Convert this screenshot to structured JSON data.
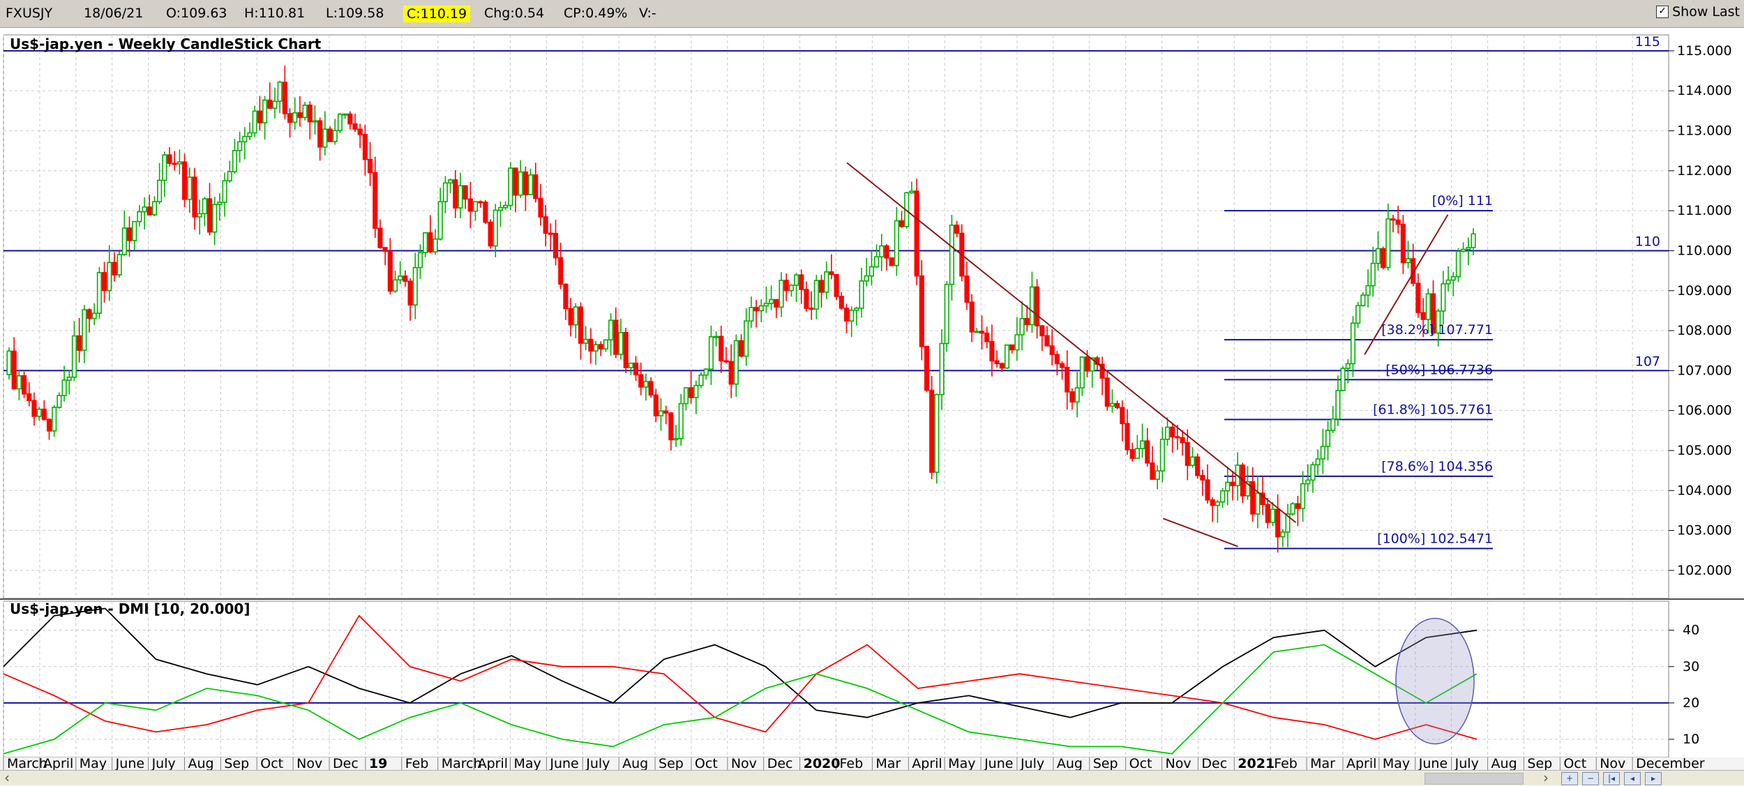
{
  "info_bar": {
    "symbol": "FXUSJY",
    "date": "18/06/21",
    "open": "O:109.63",
    "high": "H:110.81",
    "low": "L:109.58",
    "close": "C:110.19",
    "change": "Chg:0.54",
    "change_pct": "CP:0.49%",
    "volume": "V:-",
    "show_last_label": "Show Last",
    "show_last_checked": true
  },
  "chart_data": [
    {
      "type": "candlestick",
      "title": "Us$-jap.yen - Weekly CandleStick Chart",
      "y_range": [
        101.3,
        115.4
      ],
      "y_ticks": [
        "102.000",
        "103.000",
        "104.000",
        "105.000",
        "106.000",
        "107.000",
        "108.000",
        "109.000",
        "110.000",
        "111.000",
        "112.000",
        "113.000",
        "114.000",
        "115.000"
      ],
      "horizontal_lines": [
        {
          "value": 115,
          "label": "115"
        },
        {
          "value": 110,
          "label": "110"
        },
        {
          "value": 107,
          "label": "107"
        }
      ],
      "fibonacci_levels": [
        {
          "value": 111,
          "label": "[0%] 111"
        },
        {
          "value": 107.771,
          "label": "[38.2%] 107.771"
        },
        {
          "value": 106.7736,
          "label": "[50%] 106.7736"
        },
        {
          "value": 105.7761,
          "label": "[61.8%] 105.7761"
        },
        {
          "value": 104.356,
          "label": "[78.6%] 104.356"
        },
        {
          "value": 102.5471,
          "label": "[100%] 102.5471"
        }
      ],
      "trendlines": [
        {
          "from": [
            "2020-02-10",
            112.2
          ],
          "to": [
            "2021-02-22",
            103.2
          ]
        },
        {
          "from": [
            "2020-11-02",
            103.3
          ],
          "to": [
            "2021-01-04",
            102.6
          ]
        },
        {
          "from": [
            "2021-04-19",
            107.4
          ],
          "to": [
            "2021-06-28",
            110.9
          ]
        }
      ],
      "weekly_closes": [
        [
          0,
          107.2
        ],
        [
          4,
          106.0
        ],
        [
          8,
          105.2
        ],
        [
          12,
          107.1
        ],
        [
          16,
          108.6
        ],
        [
          20,
          109.5
        ],
        [
          24,
          110.5
        ],
        [
          28,
          111.3
        ],
        [
          32,
          112.6
        ],
        [
          36,
          111.4
        ],
        [
          40,
          110.8
        ],
        [
          44,
          112.0
        ],
        [
          48,
          113.2
        ],
        [
          52,
          114.0
        ],
        [
          56,
          113.6
        ],
        [
          60,
          113.2
        ],
        [
          64,
          112.6
        ],
        [
          68,
          113.5
        ],
        [
          72,
          111.6
        ],
        [
          76,
          109.2
        ],
        [
          80,
          108.8
        ],
        [
          84,
          110.4
        ],
        [
          88,
          111.6
        ],
        [
          92,
          111.2
        ],
        [
          96,
          110.4
        ],
        [
          100,
          111.7
        ],
        [
          104,
          111.8
        ],
        [
          108,
          110.2
        ],
        [
          112,
          108.5
        ],
        [
          116,
          107.5
        ],
        [
          120,
          108.0
        ],
        [
          124,
          107.3
        ],
        [
          128,
          106.1
        ],
        [
          132,
          105.3
        ],
        [
          136,
          106.5
        ],
        [
          140,
          107.8
        ],
        [
          144,
          107.0
        ],
        [
          148,
          108.6
        ],
        [
          152,
          108.9
        ],
        [
          156,
          109.3
        ],
        [
          160,
          108.9
        ],
        [
          164,
          109.5
        ],
        [
          168,
          108.3
        ],
        [
          172,
          109.8
        ],
        [
          176,
          110.0
        ],
        [
          180,
          111.5
        ],
        [
          184,
          104.6
        ],
        [
          188,
          110.8
        ],
        [
          192,
          107.9
        ],
        [
          196,
          107.2
        ],
        [
          200,
          107.5
        ],
        [
          204,
          108.7
        ],
        [
          208,
          107.0
        ],
        [
          212,
          106.6
        ],
        [
          216,
          107.6
        ],
        [
          220,
          105.9
        ],
        [
          224,
          105.2
        ],
        [
          228,
          104.6
        ],
        [
          232,
          105.5
        ],
        [
          236,
          104.9
        ],
        [
          240,
          103.4
        ],
        [
          244,
          104.4
        ],
        [
          248,
          103.8
        ],
        [
          252,
          103.1
        ],
        [
          256,
          103.6
        ],
        [
          260,
          104.9
        ],
        [
          264,
          105.7
        ],
        [
          268,
          108.2
        ],
        [
          272,
          109.3
        ],
        [
          276,
          110.7
        ],
        [
          280,
          109.0
        ],
        [
          284,
          108.3
        ],
        [
          288,
          109.6
        ],
        [
          292,
          110.2
        ]
      ],
      "annotations": [
        "ellipse around latest DMI readings (Jun 2021)"
      ]
    },
    {
      "type": "line",
      "title": "Us$-jap.yen - DMI [10, 20.000]",
      "y_range": [
        5,
        48
      ],
      "y_ticks": [
        "10",
        "20",
        "30",
        "40"
      ],
      "horizontal_lines": [
        {
          "value": 20
        }
      ],
      "series": [
        {
          "color": "#000000",
          "values": [
            [
              0,
              30
            ],
            [
              10,
              44
            ],
            [
              20,
              46
            ],
            [
              30,
              32
            ],
            [
              40,
              28
            ],
            [
              50,
              25
            ],
            [
              60,
              30
            ],
            [
              70,
              24
            ],
            [
              80,
              20
            ],
            [
              90,
              28
            ],
            [
              100,
              33
            ],
            [
              110,
              26
            ],
            [
              120,
              20
            ],
            [
              130,
              32
            ],
            [
              140,
              36
            ],
            [
              150,
              30
            ],
            [
              160,
              18
            ],
            [
              170,
              16
            ],
            [
              180,
              20
            ],
            [
              190,
              22
            ],
            [
              200,
              19
            ],
            [
              210,
              16
            ],
            [
              220,
              20
            ],
            [
              230,
              20
            ],
            [
              240,
              30
            ],
            [
              250,
              38
            ],
            [
              260,
              40
            ],
            [
              270,
              30
            ],
            [
              280,
              38
            ],
            [
              290,
              40
            ]
          ]
        },
        {
          "color": "#ff0000",
          "values": [
            [
              0,
              28
            ],
            [
              10,
              22
            ],
            [
              20,
              15
            ],
            [
              30,
              12
            ],
            [
              40,
              14
            ],
            [
              50,
              18
            ],
            [
              60,
              20
            ],
            [
              70,
              44
            ],
            [
              80,
              30
            ],
            [
              90,
              26
            ],
            [
              100,
              32
            ],
            [
              110,
              30
            ],
            [
              120,
              30
            ],
            [
              130,
              28
            ],
            [
              140,
              16
            ],
            [
              150,
              12
            ],
            [
              160,
              28
            ],
            [
              170,
              36
            ],
            [
              180,
              24
            ],
            [
              190,
              26
            ],
            [
              200,
              28
            ],
            [
              210,
              26
            ],
            [
              220,
              24
            ],
            [
              230,
              22
            ],
            [
              240,
              20
            ],
            [
              250,
              16
            ],
            [
              260,
              14
            ],
            [
              270,
              10
            ],
            [
              280,
              14
            ],
            [
              290,
              10
            ]
          ]
        },
        {
          "color": "#00cc00",
          "values": [
            [
              0,
              6
            ],
            [
              10,
              10
            ],
            [
              20,
              20
            ],
            [
              30,
              18
            ],
            [
              40,
              24
            ],
            [
              50,
              22
            ],
            [
              60,
              18
            ],
            [
              70,
              10
            ],
            [
              80,
              16
            ],
            [
              90,
              20
            ],
            [
              100,
              14
            ],
            [
              110,
              10
            ],
            [
              120,
              8
            ],
            [
              130,
              14
            ],
            [
              140,
              16
            ],
            [
              150,
              24
            ],
            [
              160,
              28
            ],
            [
              170,
              24
            ],
            [
              180,
              18
            ],
            [
              190,
              12
            ],
            [
              200,
              10
            ],
            [
              210,
              8
            ],
            [
              220,
              8
            ],
            [
              230,
              6
            ],
            [
              240,
              20
            ],
            [
              250,
              34
            ],
            [
              260,
              36
            ],
            [
              270,
              28
            ],
            [
              280,
              20
            ],
            [
              290,
              28
            ]
          ]
        }
      ]
    }
  ],
  "x_axis": {
    "months": [
      {
        "label": "March",
        "bold": false
      },
      {
        "label": "April",
        "bold": false
      },
      {
        "label": "May",
        "bold": false
      },
      {
        "label": "June",
        "bold": false
      },
      {
        "label": "July",
        "bold": false
      },
      {
        "label": "Aug",
        "bold": false
      },
      {
        "label": "Sep",
        "bold": false
      },
      {
        "label": "Oct",
        "bold": false
      },
      {
        "label": "Nov",
        "bold": false
      },
      {
        "label": "Dec",
        "bold": false
      },
      {
        "label": "19",
        "bold": true
      },
      {
        "label": "Feb",
        "bold": false
      },
      {
        "label": "March",
        "bold": false
      },
      {
        "label": "April",
        "bold": false
      },
      {
        "label": "May",
        "bold": false
      },
      {
        "label": "June",
        "bold": false
      },
      {
        "label": "July",
        "bold": false
      },
      {
        "label": "Aug",
        "bold": false
      },
      {
        "label": "Sep",
        "bold": false
      },
      {
        "label": "Oct",
        "bold": false
      },
      {
        "label": "Nov",
        "bold": false
      },
      {
        "label": "Dec",
        "bold": false
      },
      {
        "label": "2020",
        "bold": true
      },
      {
        "label": "Feb",
        "bold": false
      },
      {
        "label": "Mar",
        "bold": false
      },
      {
        "label": "April",
        "bold": false
      },
      {
        "label": "May",
        "bold": false
      },
      {
        "label": "June",
        "bold": false
      },
      {
        "label": "July",
        "bold": false
      },
      {
        "label": "Aug",
        "bold": false
      },
      {
        "label": "Sep",
        "bold": false
      },
      {
        "label": "Oct",
        "bold": false
      },
      {
        "label": "Nov",
        "bold": false
      },
      {
        "label": "Dec",
        "bold": false
      },
      {
        "label": "2021",
        "bold": true
      },
      {
        "label": "Feb",
        "bold": false
      },
      {
        "label": "Mar",
        "bold": false
      },
      {
        "label": "April",
        "bold": false
      },
      {
        "label": "May",
        "bold": false
      },
      {
        "label": "June",
        "bold": false
      },
      {
        "label": "July",
        "bold": false
      },
      {
        "label": "Aug",
        "bold": false
      },
      {
        "label": "Sep",
        "bold": false
      },
      {
        "label": "Oct",
        "bold": false
      },
      {
        "label": "Nov",
        "bold": false
      },
      {
        "label": "December",
        "bold": false
      }
    ]
  },
  "colors": {
    "up_candle": "#00b000",
    "down_candle": "#ff0000",
    "level_line": "#1010a0",
    "trendline": "#8b1a1a",
    "grid": "#c8c8c8",
    "highlight": "#ffff00"
  },
  "nav_icons": [
    "scroll-left-icon",
    "scroll-right-icon",
    "zoom-in-icon",
    "zoom-out-icon",
    "first-icon",
    "prev-icon",
    "next-icon"
  ]
}
